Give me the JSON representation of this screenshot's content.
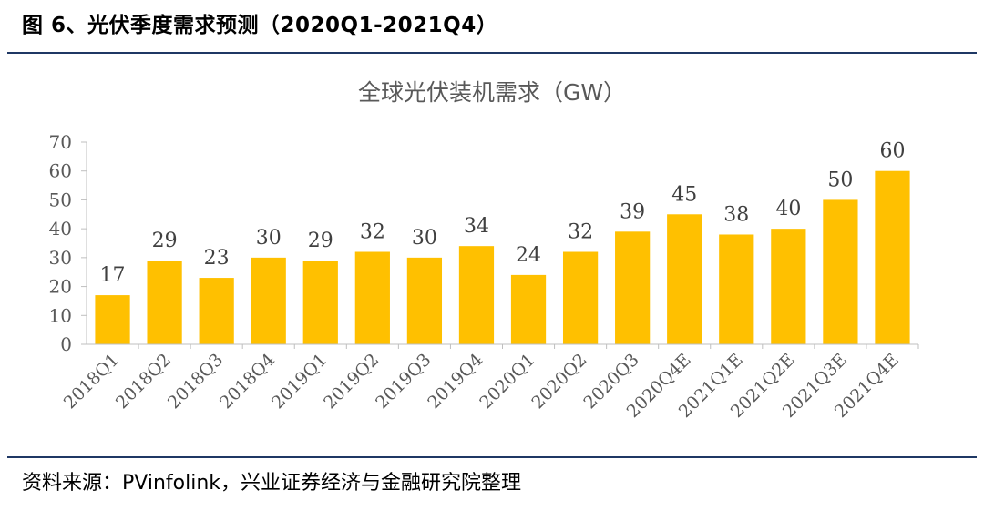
{
  "figure_title": "图 6、光伏季度需求预测（2020Q1-2021Q4）",
  "source": "资料来源：PVinfolink，兴业证券经济与金融研究院整理",
  "chart_data": {
    "type": "bar",
    "title": "全球光伏装机需求（GW）",
    "categories": [
      "2018Q1",
      "2018Q2",
      "2018Q3",
      "2018Q4",
      "2019Q1",
      "2019Q2",
      "2019Q3",
      "2019Q4",
      "2020Q1",
      "2020Q2",
      "2020Q3",
      "2020Q4E",
      "2021Q1E",
      "2021Q2E",
      "2021Q3E",
      "2021Q4E"
    ],
    "values": [
      17,
      29,
      23,
      30,
      29,
      32,
      30,
      34,
      24,
      32,
      39,
      45,
      38,
      40,
      50,
      60
    ],
    "yticks": [
      0,
      10,
      20,
      30,
      40,
      50,
      60,
      70
    ],
    "ylim": [
      0,
      70
    ],
    "bar_color": "#FFC000",
    "grid": false,
    "legend": "none"
  }
}
